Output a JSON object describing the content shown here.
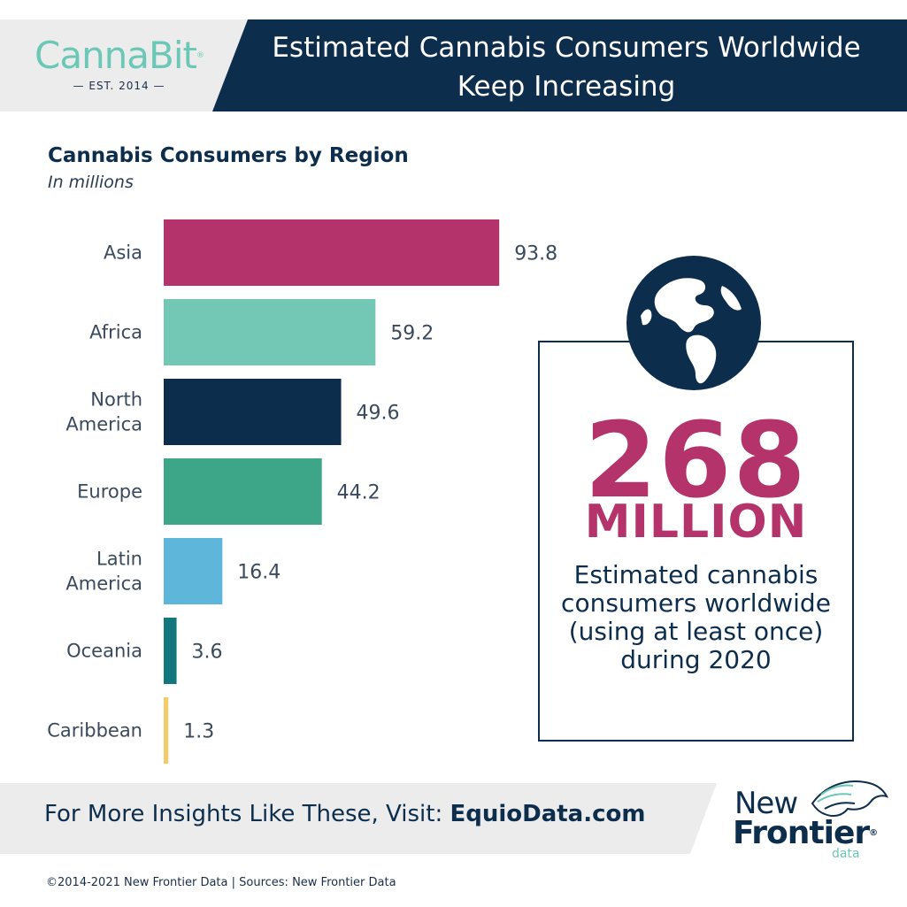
{
  "header": {
    "logo_name": "CannaBit",
    "logo_reg": "®",
    "logo_est": "— EST. 2014 —",
    "title_line1": "Estimated Cannabis Consumers Worldwide",
    "title_line2": "Keep Increasing"
  },
  "chart_data": {
    "type": "bar",
    "orientation": "horizontal",
    "title": "Cannabis Consumers by Region",
    "subtitle": "In millions",
    "categories": [
      "Asia",
      "Africa",
      "North America",
      "Europe",
      "Latin America",
      "Oceania",
      "Caribbean"
    ],
    "category_lines": [
      [
        "Asia"
      ],
      [
        "Africa"
      ],
      [
        "North",
        "America"
      ],
      [
        "Europe"
      ],
      [
        "Latin",
        "America"
      ],
      [
        "Oceania"
      ],
      [
        "Caribbean"
      ]
    ],
    "values": [
      93.8,
      59.2,
      49.6,
      44.2,
      16.4,
      3.6,
      1.3
    ],
    "value_labels": [
      "93.8",
      "59.2",
      "49.6",
      "44.2",
      "16.4",
      "3.6",
      "1.3"
    ],
    "colors": [
      "#b3336a",
      "#72c8b4",
      "#0c2d4c",
      "#3ea688",
      "#5eb6da",
      "#12767d",
      "#f2cc6b"
    ],
    "xlim": [
      0,
      94
    ],
    "grid": false,
    "legend": "none"
  },
  "stat": {
    "number": "268",
    "unit": "MILLION",
    "desc_lines": [
      "Estimated cannabis",
      "consumers worldwide",
      "(using at least once)",
      "during 2020"
    ]
  },
  "footer": {
    "prefix": "For More Insights Like These, Visit: ",
    "link": "EquioData.com",
    "brand_new": "New",
    "brand_frontier": "Frontier",
    "brand_reg": "®",
    "brand_data": "data",
    "copyright": "©2014-2021  New Frontier Data | Sources: New Frontier Data"
  },
  "colors": {
    "navy": "#0c2d4c",
    "magenta": "#b3336a",
    "mint": "#6cc8b6",
    "band_gray": "#ececec"
  },
  "icons": [
    "globe-icon",
    "horse-icon"
  ]
}
